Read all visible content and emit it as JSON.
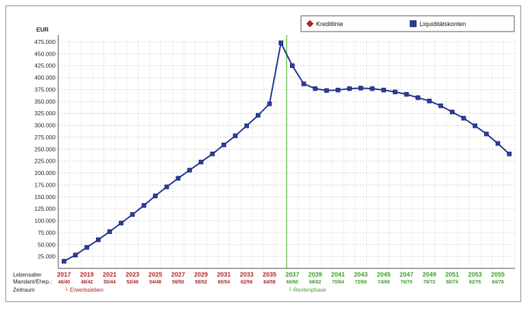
{
  "colors": {
    "series": "#1f2f8f",
    "marker": "#2b3d9c",
    "red": "#b32424",
    "green": "#3f9d2a",
    "divider": "#5bbd3c",
    "grid": "#c8c8c8"
  },
  "legend": [
    {
      "label": "Kreditlinie",
      "icon": "red-diamond-icon"
    },
    {
      "label": "Liquiditätskonten",
      "icon": "blue-square-icon"
    }
  ],
  "row_labels": {
    "age": "Lebensalter",
    "mandant": "Mandant/Ehep.:",
    "period": "Zeitraum"
  },
  "phases": [
    {
      "label": "└ Erwerbsleben",
      "color": "red"
    },
    {
      "label": "└ Rentenphase",
      "color": "green"
    }
  ],
  "chart_data": {
    "type": "line",
    "ylabel": "EUR",
    "ylim": [
      0,
      475000
    ],
    "yticks": [
      {
        "value": 25000,
        "label": "25.000"
      },
      {
        "value": 50000,
        "label": "50.000"
      },
      {
        "value": 75000,
        "label": "75.000"
      },
      {
        "value": 100000,
        "label": "100.000"
      },
      {
        "value": 125000,
        "label": "125.000"
      },
      {
        "value": 150000,
        "label": "150.000"
      },
      {
        "value": 175000,
        "label": "175.000"
      },
      {
        "value": 200000,
        "label": "200.000"
      },
      {
        "value": 225000,
        "label": "225.000"
      },
      {
        "value": 250000,
        "label": "250.000"
      },
      {
        "value": 275000,
        "label": "275.000"
      },
      {
        "value": 300000,
        "label": "300.000"
      },
      {
        "value": 325000,
        "label": "325.000"
      },
      {
        "value": 350000,
        "label": "350.000"
      },
      {
        "value": 375000,
        "label": "375.000"
      },
      {
        "value": 400000,
        "label": "400.000"
      },
      {
        "value": 425000,
        "label": "425.000"
      },
      {
        "value": 450000,
        "label": "450.000"
      },
      {
        "value": 475000,
        "label": "475.000"
      }
    ],
    "x": [
      2017,
      2018,
      2019,
      2020,
      2021,
      2022,
      2023,
      2024,
      2025,
      2026,
      2027,
      2028,
      2029,
      2030,
      2031,
      2032,
      2033,
      2034,
      2035,
      2036,
      2037,
      2038,
      2039,
      2040,
      2041,
      2042,
      2043,
      2044,
      2045,
      2046,
      2047,
      2048,
      2049,
      2050,
      2051,
      2052,
      2053,
      2054,
      2055,
      2056
    ],
    "divider_year": 2036.5,
    "series": [
      {
        "name": "Liquiditätskonten",
        "values": [
          15000,
          28000,
          44000,
          60000,
          77000,
          95000,
          113000,
          132000,
          152000,
          171000,
          189000,
          206000,
          223000,
          240000,
          259000,
          278000,
          299000,
          321000,
          345000,
          473000,
          425000,
          387000,
          377000,
          373000,
          374000,
          377000,
          378000,
          377000,
          374000,
          370000,
          365000,
          358000,
          351000,
          341000,
          328000,
          315000,
          299000,
          282000,
          262000,
          240000
        ]
      }
    ],
    "x_tick_labels": [
      {
        "year": "2017",
        "age": "46/40",
        "color": "red"
      },
      {
        "year": "2019",
        "age": "48/42",
        "color": "red"
      },
      {
        "year": "2021",
        "age": "50/44",
        "color": "red"
      },
      {
        "year": "2023",
        "age": "52/46",
        "color": "red"
      },
      {
        "year": "2025",
        "age": "54/48",
        "color": "red"
      },
      {
        "year": "2027",
        "age": "56/50",
        "color": "red"
      },
      {
        "year": "2029",
        "age": "58/52",
        "color": "red"
      },
      {
        "year": "2031",
        "age": "60/54",
        "color": "red"
      },
      {
        "year": "2033",
        "age": "62/56",
        "color": "red"
      },
      {
        "year": "2035",
        "age": "64/58",
        "color": "red"
      },
      {
        "year": "2037",
        "age": "66/60",
        "color": "green"
      },
      {
        "year": "2039",
        "age": "68/62",
        "color": "green"
      },
      {
        "year": "2041",
        "age": "70/64",
        "color": "green"
      },
      {
        "year": "2043",
        "age": "72/66",
        "color": "green"
      },
      {
        "year": "2045",
        "age": "74/68",
        "color": "green"
      },
      {
        "year": "2047",
        "age": "76/70",
        "color": "green"
      },
      {
        "year": "2049",
        "age": "78/72",
        "color": "green"
      },
      {
        "year": "2051",
        "age": "80/74",
        "color": "green"
      },
      {
        "year": "2053",
        "age": "82/76",
        "color": "green"
      },
      {
        "year": "2055",
        "age": "84/78",
        "color": "green"
      }
    ],
    "grid": true,
    "legend_position": "top-right"
  }
}
